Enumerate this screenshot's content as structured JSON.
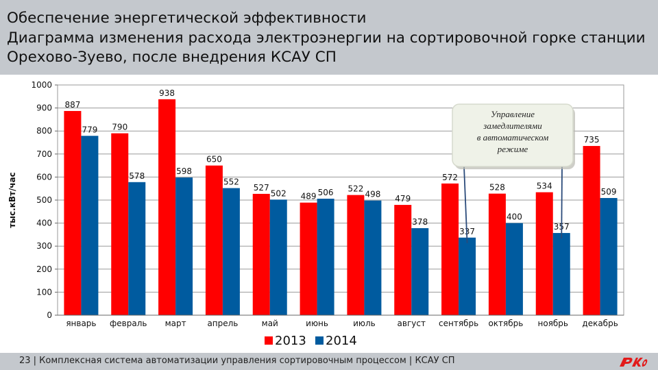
{
  "header": {
    "line1": "Обеспечение энергетической эффективности",
    "line2": "Диаграмма изменения расхода электроэнергии на сортировочной горке станции",
    "line3": "Орехово-Зуево, после внедрения КСАУ СП"
  },
  "chart_data": {
    "type": "bar",
    "title": "Диаграмма изменения расхода электроэнергии на сортировочной горке станции Орехово-Зуево, после внедрения КСАУ СП",
    "ylabel": "тыс.кВт/час",
    "xlabel": "",
    "ylim": [
      0,
      1000
    ],
    "yticks": [
      0,
      100,
      200,
      300,
      400,
      500,
      600,
      700,
      800,
      900,
      1000
    ],
    "grid": true,
    "legend_position": "bottom",
    "categories": [
      "январь",
      "февраль",
      "март",
      "апрель",
      "май",
      "июнь",
      "июль",
      "август",
      "сентябрь",
      "октябрь",
      "ноябрь",
      "декабрь"
    ],
    "series": [
      {
        "name": "2013",
        "color": "#ff0000",
        "values": [
          887,
          790,
          938,
          650,
          527,
          489,
          522,
          479,
          572,
          528,
          534,
          735
        ]
      },
      {
        "name": "2014",
        "color": "#005b9f",
        "values": [
          779,
          578,
          598,
          552,
          502,
          506,
          498,
          378,
          337,
          400,
          357,
          509
        ]
      }
    ],
    "annotation": {
      "line1": "Управление",
      "line2": "замедлителями",
      "line3": "в автоматическом",
      "line4": "режиме",
      "points_to": [
        {
          "category": "сентябрь",
          "series": "2014"
        },
        {
          "category": "ноябрь",
          "series": "2014"
        }
      ]
    }
  },
  "footer": {
    "text": "23 | Комплексная система автоматизации управления сортировочным процессом | КСАУ СП",
    "logo_icon": "rzd-logo-icon",
    "logo_color": "#e21a1a"
  }
}
